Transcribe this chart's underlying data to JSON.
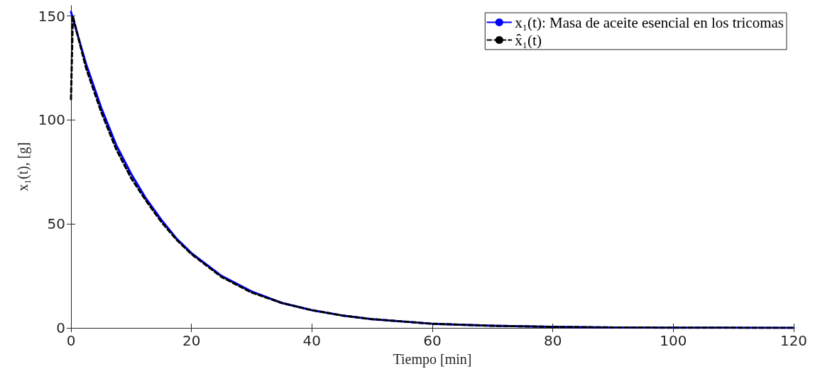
{
  "chart_data": {
    "type": "line",
    "xlabel": "Tiempo [min]",
    "ylabel": "x₁(t), [g]",
    "xlim": [
      0,
      120
    ],
    "xticks": [
      0,
      20,
      40,
      60,
      80,
      100,
      120
    ],
    "ylim": [
      0,
      155
    ],
    "yticks": [
      0,
      50,
      100,
      150
    ],
    "grid": false,
    "legend": "top right",
    "marker": "none",
    "series": [
      {
        "name": "x₁(t): Masa de aceite esencial en los tricomas",
        "color": "#0000ff",
        "line_style": "solid",
        "x": [
          0,
          2.5,
          5,
          7.5,
          10,
          12.5,
          15,
          17.5,
          20,
          25,
          30,
          35,
          40,
          45,
          50,
          60,
          70,
          80,
          90,
          100,
          120
        ],
        "values": [
          152,
          127,
          106,
          88,
          74,
          62,
          52,
          43,
          36,
          25,
          17.5,
          12,
          8.5,
          6,
          4.2,
          2,
          1,
          0.5,
          0.2,
          0.1,
          0
        ]
      },
      {
        "name": "x̂₁(t)",
        "color": "#000000",
        "line_style": "dashed",
        "x": [
          0,
          0.3,
          2.5,
          5,
          7.5,
          10,
          12.5,
          15,
          17.5,
          20,
          25,
          30,
          35,
          40,
          45,
          50,
          60,
          70,
          80,
          90,
          100,
          120
        ],
        "values": [
          110,
          150,
          125,
          104,
          86,
          72,
          61,
          51,
          42.5,
          35.5,
          24.5,
          17,
          12,
          8.5,
          6,
          4.2,
          2,
          1,
          0.5,
          0.2,
          0.1,
          0
        ]
      }
    ]
  }
}
